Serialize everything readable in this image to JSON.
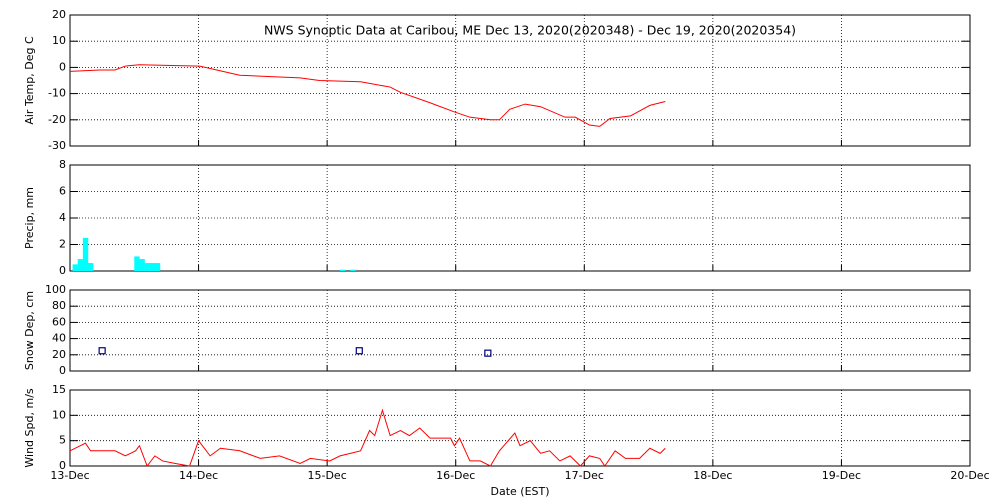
{
  "chart_data": [
    {
      "type": "line",
      "title": "NWS Synoptic Data at Caribou, ME   Dec 13, 2020(2020348) - Dec 19, 2020(2020354)",
      "ylabel": "Air Temp, Deg C",
      "ylim": [
        -30,
        20
      ],
      "yticks": [
        -30,
        -20,
        -10,
        0,
        10,
        20
      ],
      "xlim": [
        0,
        7
      ],
      "xticks": [
        0,
        1,
        2,
        3,
        4,
        5,
        6,
        7
      ],
      "grid": true,
      "color": "#ff0000",
      "x": [
        0,
        0.23,
        0.35,
        0.43,
        0.54,
        1.01,
        1.32,
        1.56,
        1.79,
        1.94,
        2.26,
        2.49,
        2.57,
        2.8,
        2.99,
        3.11,
        3.27,
        3.34,
        3.42,
        3.54,
        3.66,
        3.85,
        3.93,
        4.04,
        4.12,
        4.2,
        4.36,
        4.51,
        4.63
      ],
      "values": [
        -1.5,
        -1,
        -1,
        0.5,
        1,
        0.5,
        -3,
        -3.5,
        -4,
        -5,
        -5.5,
        -7.5,
        -9.5,
        -13.5,
        -17,
        -19,
        -20,
        -20,
        -16,
        -14,
        -15,
        -19,
        -19,
        -22,
        -22.5,
        -19.5,
        -18.5,
        -14.5,
        -13
      ]
    },
    {
      "type": "bar",
      "ylabel": "Precip, mm",
      "ylim": [
        0,
        8
      ],
      "yticks": [
        0,
        2,
        4,
        6,
        8
      ],
      "xlim": [
        0,
        7
      ],
      "xticks": [
        0,
        1,
        2,
        3,
        4,
        5,
        6,
        7
      ],
      "grid": true,
      "color": "#00ffff",
      "x": [
        0.02,
        0.06,
        0.1,
        0.14,
        0.5,
        0.54,
        0.58,
        0.62,
        0.66,
        2.1,
        2.18
      ],
      "values": [
        0.5,
        0.9,
        2.5,
        0.6,
        1.1,
        0.9,
        0.6,
        0.6,
        0.6,
        0.1,
        0.1
      ]
    },
    {
      "type": "scatter",
      "ylabel": "Snow Dep, cm",
      "ylim": [
        0,
        100
      ],
      "yticks": [
        0,
        20,
        40,
        60,
        80,
        100
      ],
      "xlim": [
        0,
        7
      ],
      "xticks": [
        0,
        1,
        2,
        3,
        4,
        5,
        6,
        7
      ],
      "grid": true,
      "color": "#000080",
      "x": [
        0.25,
        2.25,
        3.25
      ],
      "values": [
        25,
        25,
        22
      ]
    },
    {
      "type": "line",
      "ylabel": "Wind Spd, m/s",
      "xlabel": "Date (EST)",
      "ylim": [
        0,
        15
      ],
      "yticks": [
        0,
        5,
        10,
        15
      ],
      "xlim": [
        0,
        7
      ],
      "xticks": [
        {
          "value": 0,
          "label": "13-Dec"
        },
        {
          "value": 1,
          "label": "14-Dec"
        },
        {
          "value": 2,
          "label": "15-Dec"
        },
        {
          "value": 3,
          "label": "16-Dec"
        },
        {
          "value": 4,
          "label": "17-Dec"
        },
        {
          "value": 5,
          "label": "18-Dec"
        },
        {
          "value": 6,
          "label": "19-Dec"
        },
        {
          "value": 7,
          "label": "20-Dec"
        }
      ],
      "grid": true,
      "color": "#ff0000",
      "x": [
        0,
        0.12,
        0.16,
        0.35,
        0.43,
        0.51,
        0.54,
        0.6,
        0.66,
        0.72,
        0.82,
        0.93,
        1.0,
        1.09,
        1.17,
        1.32,
        1.48,
        1.63,
        1.79,
        1.87,
        2.02,
        2.1,
        2.18,
        2.26,
        2.33,
        2.37,
        2.43,
        2.49,
        2.57,
        2.64,
        2.72,
        2.8,
        2.96,
        2.99,
        3.03,
        3.11,
        3.19,
        3.27,
        3.34,
        3.46,
        3.5,
        3.58,
        3.66,
        3.73,
        3.81,
        3.89,
        3.97,
        4.04,
        4.12,
        4.16,
        4.24,
        4.32,
        4.43,
        4.51,
        4.59,
        4.63
      ],
      "values": [
        3,
        4.5,
        3,
        3,
        2,
        3,
        4,
        0,
        2,
        1,
        0.5,
        0,
        5,
        2,
        3.5,
        3,
        1.5,
        2,
        0.5,
        1.5,
        1,
        2,
        2.5,
        3,
        7,
        6,
        11,
        6,
        7,
        6,
        7.5,
        5.5,
        5.5,
        4,
        5.5,
        1,
        1,
        0,
        3,
        6.5,
        4,
        5,
        2.5,
        3,
        1,
        2,
        0,
        2,
        1.5,
        0,
        3,
        1.5,
        1.5,
        3.5,
        2.5,
        3.5
      ]
    }
  ]
}
